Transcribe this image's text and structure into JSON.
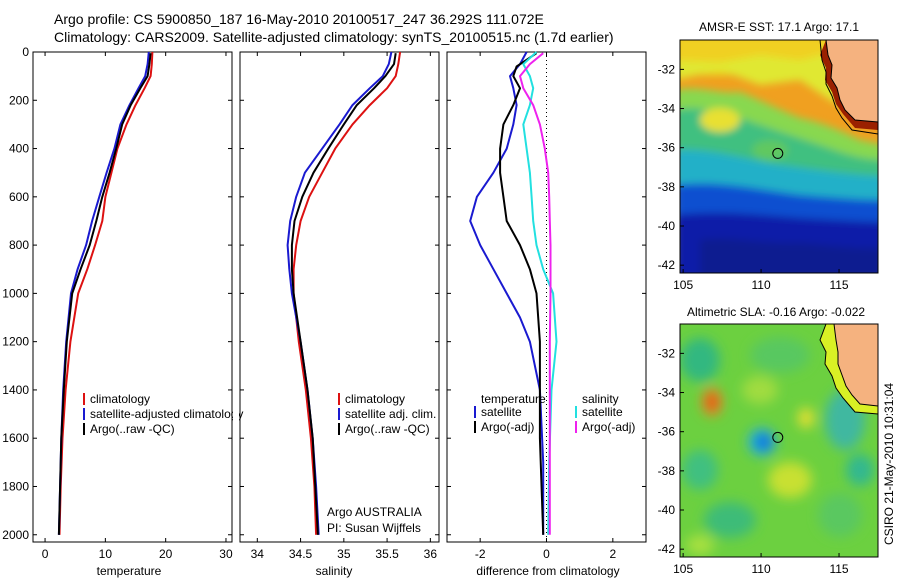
{
  "title": {
    "line1": "Argo profile: CS 5900850_187 16-May-2010 20100517_247 36.292S 111.072E",
    "line2": "Climatology: CARS2009. Satellite-adjusted climatology: synTS_20100515.nc (1.7d earlier)"
  },
  "colors": {
    "climatology": "#dd1111",
    "satellite": "#1a1ad0",
    "argo": "#000000",
    "satellite_salinity": "#22e0e0",
    "argo_adj_salinity": "#ee22ee",
    "land": "#f5b27f",
    "coast": "#d9f025"
  },
  "chart_data": [
    {
      "type": "line",
      "xlabel": "temperature",
      "xlim": [
        -2,
        31
      ],
      "ylim": [
        2030,
        0
      ],
      "y_reversed": true,
      "xticks": [
        0,
        10,
        20,
        30
      ],
      "yticks": [
        0,
        200,
        400,
        600,
        800,
        1000,
        1200,
        1400,
        1600,
        1800,
        2000
      ],
      "legend": [
        "climatology",
        "satellite-adjusted climatology",
        "Argo(..raw -QC)"
      ],
      "series": [
        {
          "name": "climatology",
          "color": "#dd1111",
          "x": [
            17.8,
            17.7,
            17.5,
            16.5,
            15,
            13.5,
            12,
            11,
            10,
            9.5,
            8.3,
            7,
            5.5,
            4.2,
            3.4,
            2.9,
            2.6,
            2.4
          ],
          "y": [
            0,
            50,
            100,
            150,
            220,
            300,
            400,
            500,
            600,
            700,
            800,
            900,
            1000,
            1200,
            1400,
            1600,
            1800,
            2000
          ]
        },
        {
          "name": "satellite-adjusted climatology",
          "color": "#1a1ad0",
          "x": [
            17.2,
            17,
            16.6,
            15.5,
            14,
            12.5,
            11.5,
            10.2,
            9,
            7.8,
            6.8,
            5.4,
            4.3,
            3.5,
            3,
            2.7,
            2.5,
            2.3
          ],
          "y": [
            0,
            50,
            100,
            150,
            220,
            300,
            400,
            500,
            600,
            700,
            800,
            900,
            1000,
            1200,
            1400,
            1600,
            1800,
            2000
          ]
        },
        {
          "name": "Argo(..raw -QC)",
          "color": "#000000",
          "x": [
            17.5,
            17.3,
            17,
            15.8,
            14.2,
            12.8,
            11.8,
            10.7,
            9.5,
            8.5,
            7.4,
            5.9,
            4.5,
            3.6,
            3.1,
            2.7,
            2.5,
            2.3
          ],
          "y": [
            5,
            50,
            100,
            150,
            220,
            300,
            400,
            500,
            600,
            700,
            800,
            900,
            1000,
            1200,
            1400,
            1600,
            1800,
            2000
          ]
        }
      ],
      "annotations": []
    },
    {
      "type": "line",
      "xlabel": "salinity",
      "xlim": [
        33.8,
        36.1
      ],
      "ylim": [
        2030,
        0
      ],
      "y_reversed": true,
      "xticks": [
        34,
        34.5,
        35,
        35.5,
        36
      ],
      "yticks": [],
      "legend": [
        "climatology",
        "satellite adj. clim.",
        "Argo(..raw -QC)"
      ],
      "series": [
        {
          "name": "climatology",
          "color": "#dd1111",
          "x": [
            35.65,
            35.63,
            35.6,
            35.5,
            35.3,
            35.1,
            34.9,
            34.75,
            34.6,
            34.5,
            34.45,
            34.42,
            34.42,
            34.48,
            34.56,
            34.62,
            34.66,
            34.68
          ],
          "y": [
            0,
            50,
            100,
            150,
            220,
            300,
            400,
            500,
            600,
            700,
            800,
            900,
            1000,
            1200,
            1400,
            1600,
            1800,
            2000
          ]
        },
        {
          "name": "satellite adj. clim.",
          "color": "#1a1ad0",
          "x": [
            35.55,
            35.52,
            35.45,
            35.3,
            35.1,
            34.95,
            34.75,
            34.55,
            34.45,
            34.38,
            34.35,
            34.37,
            34.4,
            34.5,
            34.58,
            34.64,
            34.68,
            34.71
          ],
          "y": [
            0,
            50,
            100,
            150,
            220,
            300,
            400,
            500,
            600,
            700,
            800,
            900,
            1000,
            1200,
            1400,
            1600,
            1800,
            2000
          ]
        },
        {
          "name": "Argo(..raw -QC)",
          "color": "#000000",
          "x": [
            35.6,
            35.58,
            35.48,
            35.35,
            35.15,
            35,
            34.82,
            34.65,
            34.52,
            34.43,
            34.4,
            34.4,
            34.42,
            34.5,
            34.58,
            34.64,
            34.67,
            34.7
          ],
          "y": [
            5,
            50,
            100,
            150,
            220,
            300,
            400,
            500,
            600,
            700,
            800,
            900,
            1000,
            1200,
            1400,
            1600,
            1800,
            2000
          ]
        }
      ],
      "annotations": [
        "Argo AUSTRALIA",
        "PI: Susan Wijffels"
      ]
    },
    {
      "type": "line",
      "xlabel": "difference from climatology",
      "xlim": [
        -3,
        3
      ],
      "ylim": [
        2030,
        0
      ],
      "y_reversed": true,
      "xticks": [
        -2,
        0,
        2
      ],
      "yticks": [],
      "zero_line": 0,
      "legend_headers": [
        "temperature",
        "salinity"
      ],
      "legend": [
        "satellite",
        "Argo(-adj)",
        "satellite",
        "Argo(-adj)"
      ],
      "series": [
        {
          "name": "satellite",
          "color": "#1a1ad0",
          "x": [
            -0.6,
            -0.8,
            -1.1,
            -1.0,
            -0.9,
            -1.0,
            -1.2,
            -1.6,
            -2.1,
            -2.3,
            -2.0,
            -1.6,
            -1.2,
            -0.8,
            -0.5,
            -0.2,
            -0.1,
            -0.1
          ],
          "y": [
            0,
            50,
            100,
            150,
            220,
            300,
            400,
            500,
            600,
            700,
            800,
            900,
            1000,
            1100,
            1200,
            1400,
            1700,
            2000
          ]
        },
        {
          "name": "Argo(-adj)",
          "color": "#000000",
          "x": [
            -0.3,
            -0.9,
            -1.0,
            -0.8,
            -1.0,
            -1.3,
            -1.4,
            -1.4,
            -1.3,
            -1.2,
            -0.8,
            -0.5,
            -0.3,
            -0.2,
            -0.2,
            -0.1
          ],
          "y": [
            5,
            60,
            100,
            150,
            220,
            300,
            400,
            500,
            600,
            700,
            800,
            900,
            1000,
            1200,
            1600,
            2000
          ]
        },
        {
          "name": "satellite",
          "color": "#22e0e0",
          "x": [
            -0.3,
            -0.7,
            -0.5,
            -0.4,
            -0.5,
            -0.7,
            -0.6,
            -0.5,
            -0.45,
            -0.4,
            -0.3,
            -0.1,
            0.2,
            0.3,
            0.15,
            0.08,
            0.05
          ],
          "y": [
            0,
            50,
            100,
            150,
            220,
            300,
            400,
            500,
            600,
            700,
            800,
            900,
            1000,
            1200,
            1400,
            1700,
            2000
          ]
        },
        {
          "name": "Argo(-adj)",
          "color": "#ee22ee",
          "x": [
            -0.1,
            -0.5,
            -0.8,
            -0.7,
            -0.4,
            -0.2,
            -0.05,
            0.05,
            0.08,
            0.1,
            0.12,
            0.12,
            0.12,
            0.1,
            0.1,
            0.1
          ],
          "y": [
            5,
            50,
            100,
            150,
            220,
            300,
            400,
            500,
            600,
            700,
            800,
            900,
            1000,
            1200,
            1600,
            2000
          ]
        }
      ],
      "annotations": []
    }
  ],
  "maps": [
    {
      "title": "AMSR-E SST: 17.1 Argo: 17.1",
      "xticks": [
        105,
        110,
        115
      ],
      "yticks": [
        -32,
        -34,
        -36,
        -38,
        -40,
        -42
      ],
      "xlim": [
        104.8,
        117.5
      ],
      "ylim": [
        -42.4,
        -30.5
      ],
      "argo_position": [
        111.072,
        -36.292
      ]
    },
    {
      "title": "Altimetric SLA: -0.16 Argo: -0.022",
      "xticks": [
        105,
        110,
        115
      ],
      "yticks": [
        -32,
        -34,
        -36,
        -38,
        -40,
        -42
      ],
      "xlim": [
        104.8,
        117.5
      ],
      "ylim": [
        -42.4,
        -30.5
      ],
      "argo_position": [
        111.072,
        -36.292
      ]
    }
  ],
  "side_label": "CSIRO 21-May-2010 10:31:04"
}
